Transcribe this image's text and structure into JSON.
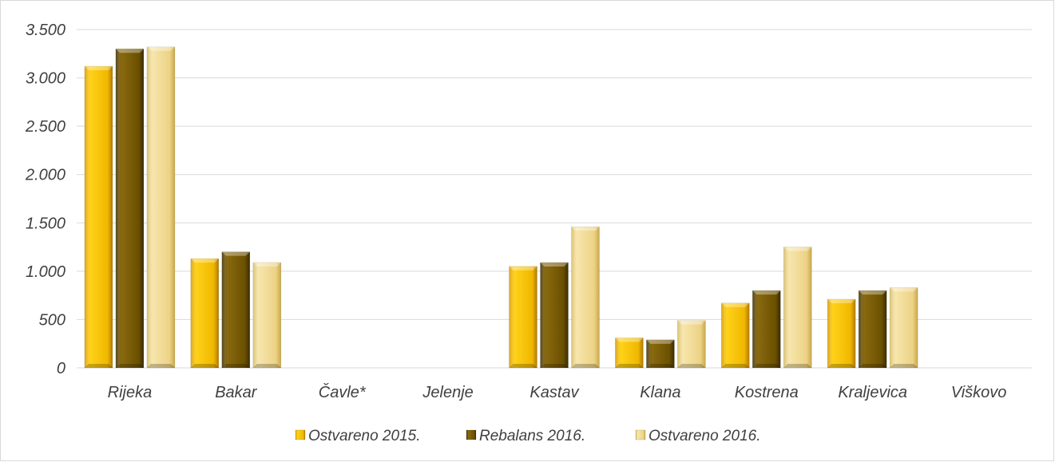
{
  "chart_data": {
    "type": "bar",
    "title": "",
    "xlabel": "",
    "ylabel": "",
    "ylim": [
      0,
      3500
    ],
    "yticks": [
      0,
      500,
      1000,
      1500,
      2000,
      2500,
      3000,
      3500
    ],
    "ytick_labels": [
      "0",
      "500",
      "1.000",
      "1.500",
      "2.000",
      "2.500",
      "3.000",
      "3.500"
    ],
    "grid": true,
    "legend_position": "bottom",
    "categories": [
      "Rijeka",
      "Bakar",
      "Čavle*",
      "Jelenje",
      "Kastav",
      "Klana",
      "Kostrena",
      "Kraljevica",
      "Viškovo"
    ],
    "series": [
      {
        "name": "Ostvareno 2015.",
        "color": "#f2c200",
        "values": [
          3120,
          1130,
          0,
          0,
          1050,
          310,
          670,
          710,
          0
        ]
      },
      {
        "name": "Rebalans 2016.",
        "color": "#6b5200",
        "values": [
          3300,
          1200,
          0,
          0,
          1090,
          290,
          800,
          800,
          0
        ]
      },
      {
        "name": "Ostvareno 2016.",
        "color": "#eed78b",
        "values": [
          3320,
          1090,
          0,
          0,
          1460,
          490,
          1250,
          830,
          0
        ]
      }
    ]
  }
}
